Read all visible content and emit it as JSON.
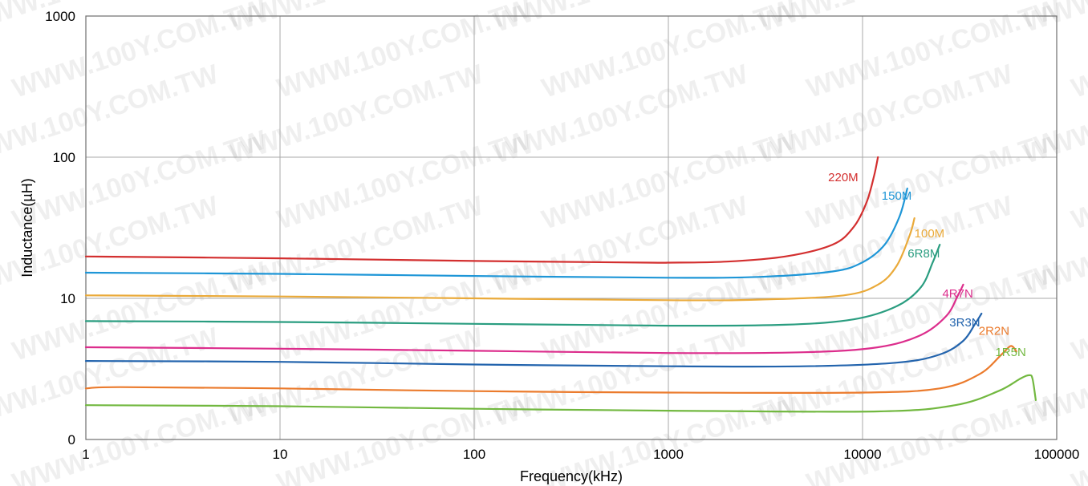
{
  "watermark": "WWW.100Y.COM.TW",
  "chart_data": {
    "type": "line",
    "title": "",
    "xlabel": "Frequency(kHz)",
    "ylabel": "Inductance(µH)",
    "x_scale": "log",
    "y_scale": "log",
    "xlim": [
      1,
      100000
    ],
    "x_ticks": [
      {
        "value": 1,
        "label": "1"
      },
      {
        "value": 10,
        "label": "10"
      },
      {
        "value": 100,
        "label": "100"
      },
      {
        "value": 1000,
        "label": "1000"
      },
      {
        "value": 10000,
        "label": "10000"
      },
      {
        "value": 100000,
        "label": "100000"
      }
    ],
    "y_ticks": [
      {
        "value": 1,
        "label": "0"
      },
      {
        "value": 10,
        "label": "10"
      },
      {
        "value": 100,
        "label": "100"
      },
      {
        "value": 1000,
        "label": "1000"
      }
    ],
    "grid": true,
    "legend": "inline labels near curve ends",
    "series": [
      {
        "name": "220M",
        "color": "#d32f2f",
        "x": [
          1,
          10,
          100,
          800,
          1000,
          2000,
          4000,
          7000,
          9000,
          10500,
          11500,
          12000
        ],
        "y": [
          19.8,
          19.2,
          18.4,
          17.9,
          17.9,
          18.2,
          19.8,
          24,
          32,
          48,
          75,
          100
        ]
      },
      {
        "name": "150M",
        "color": "#1e96d7",
        "x": [
          1,
          10,
          100,
          1000,
          3000,
          7000,
          10000,
          13000,
          15500,
          17000
        ],
        "y": [
          15.2,
          14.9,
          14.4,
          14.0,
          14.2,
          15.5,
          18,
          24,
          38,
          60
        ]
      },
      {
        "name": "100M",
        "color": "#eaaa3a",
        "x": [
          1,
          10,
          100,
          1000,
          3000,
          8000,
          12000,
          15000,
          17500,
          18500
        ],
        "y": [
          10.5,
          10.3,
          10.0,
          9.7,
          9.8,
          10.5,
          12.5,
          17,
          28,
          37
        ]
      },
      {
        "name": "6R8M",
        "color": "#2a9d80",
        "x": [
          1,
          10,
          100,
          1000,
          4000,
          9000,
          15000,
          20000,
          23000,
          25000
        ],
        "y": [
          6.9,
          6.8,
          6.6,
          6.4,
          6.5,
          7.1,
          8.8,
          12,
          18,
          24
        ]
      },
      {
        "name": "4R7N",
        "color": "#dc2d8c",
        "x": [
          1,
          10,
          100,
          1000,
          5000,
          12000,
          20000,
          27000,
          31000,
          33000
        ],
        "y": [
          4.5,
          4.4,
          4.25,
          4.1,
          4.15,
          4.5,
          5.5,
          7.5,
          10.5,
          12.5
        ]
      },
      {
        "name": "3R3N",
        "color": "#2364ad",
        "x": [
          1,
          10,
          100,
          1000,
          5000,
          15000,
          25000,
          33000,
          38000,
          41000
        ],
        "y": [
          3.6,
          3.55,
          3.4,
          3.3,
          3.3,
          3.5,
          4.0,
          5.0,
          6.6,
          7.8
        ]
      },
      {
        "name": "2R2N",
        "color": "#eb7b2d",
        "x": [
          1,
          1.5,
          10,
          100,
          1000,
          10000,
          25000,
          40000,
          52000,
          58000,
          62000
        ],
        "y": [
          2.3,
          2.35,
          2.3,
          2.2,
          2.15,
          2.15,
          2.3,
          2.9,
          4.0,
          4.6,
          4.2
        ]
      },
      {
        "name": "1R5N",
        "color": "#72b840",
        "x": [
          1,
          10,
          100,
          1000,
          12000,
          30000,
          50000,
          65000,
          72000,
          75000,
          78000
        ],
        "y": [
          1.75,
          1.72,
          1.65,
          1.6,
          1.58,
          1.75,
          2.2,
          2.7,
          2.85,
          2.7,
          1.9
        ]
      }
    ]
  }
}
